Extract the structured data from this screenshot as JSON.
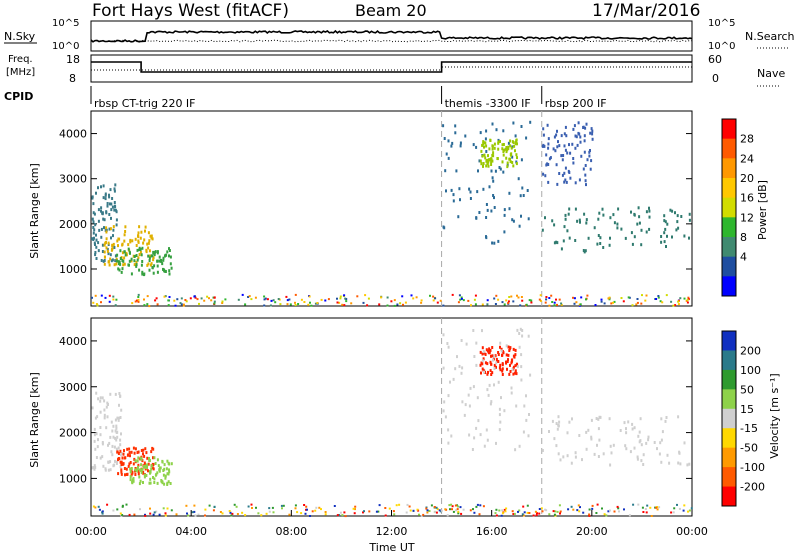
{
  "header": {
    "title": "Fort Hays West (fitACF)",
    "beam": "Beam 20",
    "date": "17/Mar/2016"
  },
  "strip_labels": {
    "nsky": "N.Sky",
    "nsearch": "N.Search",
    "nsky_ticks": [
      "10^5",
      "10^0"
    ],
    "nsearch_ticks": [
      "10^5",
      "10^0"
    ],
    "freq": "Freq.",
    "freq_unit": "[MHz]",
    "freq_ticks": [
      "18",
      "8"
    ],
    "nave": "Nave",
    "nave_ticks": [
      "60",
      "0"
    ],
    "cpid": "CPID"
  },
  "cpid_segments": [
    {
      "start_hour": 0.0,
      "label": "rbsp CT-trig 220 IF"
    },
    {
      "start_hour": 14.0,
      "label": "themis -3300 IF"
    },
    {
      "start_hour": 18.0,
      "label": "rbsp 200 IF"
    }
  ],
  "chart_data": [
    {
      "type": "heatmap",
      "name": "power",
      "xlabel": "",
      "ylabel": "Slant Range [km]",
      "x_range_hours": [
        0,
        24
      ],
      "ylim": [
        180,
        4500
      ],
      "yticks": [
        1000,
        2000,
        3000,
        4000
      ],
      "colorbar": {
        "label": "Power [dB]",
        "ticks": [
          "28",
          "24",
          "20",
          "16",
          "12",
          "8",
          "4"
        ],
        "colors": [
          "#ff0000",
          "#ff5a00",
          "#ff9800",
          "#ffc800",
          "#d2dc00",
          "#2eb62e",
          "#408a70",
          "#1f4ea0",
          "#0000ff"
        ]
      },
      "regions": [
        {
          "hours": [
            0.0,
            1.0
          ],
          "range_km": [
            1200,
            2900
          ],
          "color": "#3a7a88"
        },
        {
          "hours": [
            0.5,
            2.5
          ],
          "range_km": [
            1100,
            2000
          ],
          "color": "#e0b000"
        },
        {
          "hours": [
            1.0,
            3.2
          ],
          "range_km": [
            900,
            1500
          ],
          "color": "#36a040"
        },
        {
          "hours": [
            14.0,
            17.5
          ],
          "range_km": [
            1600,
            4300
          ],
          "color": "#2a6a96"
        },
        {
          "hours": [
            15.5,
            17.0
          ],
          "range_km": [
            3300,
            3900
          ],
          "color": "#9ac800"
        },
        {
          "hours": [
            18.0,
            24.0
          ],
          "range_km": [
            1400,
            2400
          ],
          "color": "#2f7a6e"
        },
        {
          "hours": [
            18.0,
            20.0
          ],
          "range_km": [
            2900,
            4300
          ],
          "color": "#3a5fb0"
        }
      ]
    },
    {
      "type": "heatmap",
      "name": "velocity",
      "xlabel": "Time UT",
      "ylabel": "Slant Range [km]",
      "x_range_hours": [
        0,
        24
      ],
      "xticks": [
        "00:00",
        "04:00",
        "08:00",
        "12:00",
        "16:00",
        "20:00",
        "00:00"
      ],
      "ylim": [
        180,
        4500
      ],
      "yticks": [
        1000,
        2000,
        3000,
        4000
      ],
      "colorbar": {
        "label": "Velocity [m s⁻¹]",
        "ticks": [
          "200",
          "100",
          "50",
          "15",
          "-15",
          "-50",
          "-100",
          "-200"
        ],
        "colors": [
          "#1030c0",
          "#2a7a8a",
          "#2e9a2e",
          "#8ed24a",
          "#cfcfcf",
          "#ffd800",
          "#ff9a00",
          "#ff5a00",
          "#ff0000"
        ]
      },
      "regions": [
        {
          "hours": [
            0.0,
            1.2
          ],
          "range_km": [
            1200,
            2900
          ],
          "color": "#cfcfcf"
        },
        {
          "hours": [
            1.0,
            2.5
          ],
          "range_km": [
            1100,
            1700
          ],
          "color": "#ff3000"
        },
        {
          "hours": [
            1.5,
            3.2
          ],
          "range_km": [
            900,
            1500
          ],
          "color": "#8ed24a"
        },
        {
          "hours": [
            15.5,
            17.0
          ],
          "range_km": [
            3300,
            3900
          ],
          "color": "#ff2000"
        },
        {
          "hours": [
            14.0,
            17.5
          ],
          "range_km": [
            1600,
            4300
          ],
          "color": "#cfcfcf"
        },
        {
          "hours": [
            18.0,
            24.0
          ],
          "range_km": [
            1300,
            2400
          ],
          "color": "#cfcfcf"
        }
      ]
    }
  ]
}
